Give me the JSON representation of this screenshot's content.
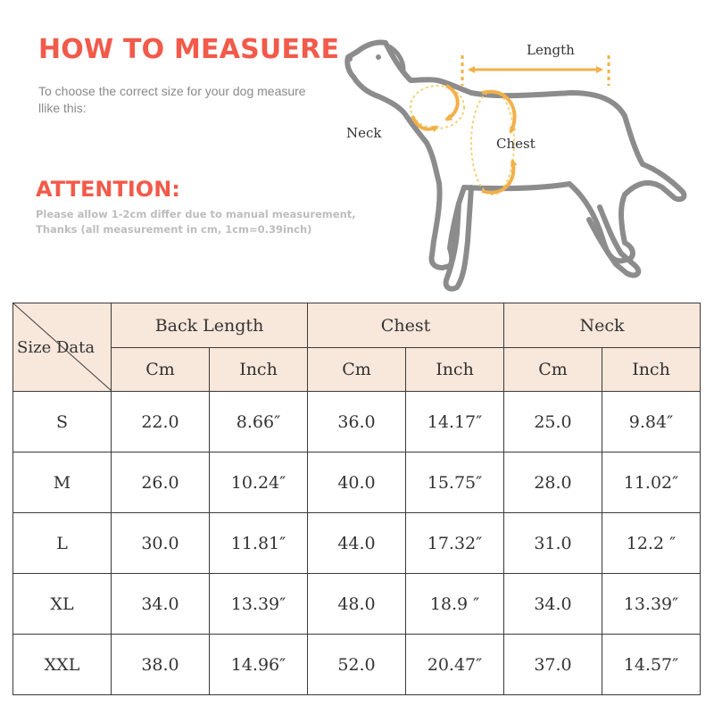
{
  "header": {
    "title": "HOW TO MEASUERE",
    "intro": "To choose the correct size for your dog measure llike this:",
    "attention_title": "ATTENTION:",
    "attention_note": "Please allow 1-2cm differ due to manual measurement, Thanks (all measurement in cm, 1cm=0.39inch)"
  },
  "diagram": {
    "length_label": "Length",
    "neck_label": "Neck",
    "chest_label": "Chest"
  },
  "colors": {
    "heading": "#f25a4a",
    "arrow": "#f2b04a",
    "header_fill": "#f8e7db",
    "dog_outline": "#8c8c8c"
  },
  "table": {
    "corner_label": "Size Data",
    "groups": [
      "Back Length",
      "Chest",
      "Neck"
    ],
    "units": [
      "Cm",
      "Inch",
      "Cm",
      "Inch",
      "Cm",
      "Inch"
    ],
    "rows": [
      {
        "size": "S",
        "cells": [
          "22.0",
          "8.66″",
          "36.0",
          "14.17″",
          "25.0",
          "9.84″"
        ]
      },
      {
        "size": "M",
        "cells": [
          "26.0",
          "10.24″",
          "40.0",
          "15.75″",
          "28.0",
          "11.02″"
        ]
      },
      {
        "size": "L",
        "cells": [
          "30.0",
          "11.81″",
          "44.0",
          "17.32″",
          "31.0",
          "12.2 ″"
        ]
      },
      {
        "size": "XL",
        "cells": [
          "34.0",
          "13.39″",
          "48.0",
          "18.9 ″",
          "34.0",
          "13.39″"
        ]
      },
      {
        "size": "XXL",
        "cells": [
          "38.0",
          "14.96″",
          "52.0",
          "20.47″",
          "37.0",
          "14.57″"
        ]
      }
    ]
  }
}
